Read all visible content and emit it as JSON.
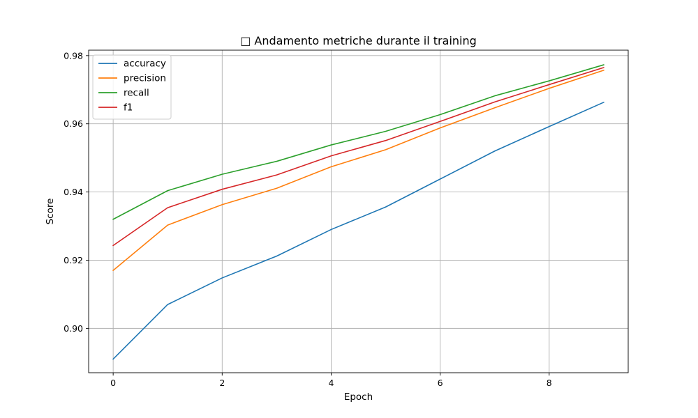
{
  "chart_data": {
    "type": "line",
    "title": "□ Andamento metriche durante il training",
    "xlabel": "Epoch",
    "ylabel": "Score",
    "x": [
      0,
      1,
      2,
      3,
      4,
      5,
      6,
      7,
      8,
      9
    ],
    "xlim": [
      -0.45,
      9.45
    ],
    "ylim": [
      0.887,
      0.9816
    ],
    "xticks": [
      0,
      2,
      4,
      6,
      8
    ],
    "yticks": [
      0.9,
      0.92,
      0.94,
      0.96,
      0.98
    ],
    "xtick_labels": [
      "0",
      "2",
      "4",
      "6",
      "8"
    ],
    "ytick_labels": [
      "0.90",
      "0.92",
      "0.94",
      "0.96",
      "0.98"
    ],
    "grid": true,
    "legend_position": "top-left",
    "series": [
      {
        "name": "accuracy",
        "color": "#1f77b4",
        "values": [
          0.891,
          0.907,
          0.9148,
          0.9212,
          0.929,
          0.9356,
          0.9438,
          0.952,
          0.9592,
          0.9663
        ]
      },
      {
        "name": "precision",
        "color": "#ff7f0e",
        "values": [
          0.917,
          0.9303,
          0.9363,
          0.9411,
          0.9474,
          0.9524,
          0.9588,
          0.9647,
          0.9704,
          0.9757
        ]
      },
      {
        "name": "recall",
        "color": "#2ca02c",
        "values": [
          0.932,
          0.9404,
          0.9452,
          0.949,
          0.9538,
          0.9578,
          0.9627,
          0.9682,
          0.9726,
          0.9773
        ]
      },
      {
        "name": "f1",
        "color": "#d62728",
        "values": [
          0.9243,
          0.9354,
          0.9408,
          0.945,
          0.9506,
          0.9551,
          0.9607,
          0.9664,
          0.9715,
          0.9765
        ]
      }
    ]
  }
}
